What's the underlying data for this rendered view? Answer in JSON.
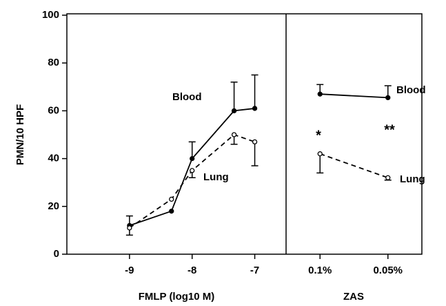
{
  "chart_data": [
    {
      "type": "line",
      "xlabel": "FMLP (log10 M)",
      "ylabel": "PMN/10 HPF",
      "x": [
        -9,
        -8.33,
        -8,
        -7.33,
        -7
      ],
      "xlim": [
        -10,
        -6.5
      ],
      "xticks": [
        -9,
        -8,
        -7
      ],
      "ylim": [
        0,
        100
      ],
      "yticks": [
        0,
        20,
        40,
        60,
        80,
        100
      ],
      "series": [
        {
          "name": "Blood",
          "color": "#000000",
          "dashed": false,
          "marker": "filled",
          "error_direction": "up",
          "values": [
            12,
            18,
            40,
            60,
            61
          ],
          "errors": [
            4,
            null,
            7,
            12,
            14
          ]
        },
        {
          "name": "Lung",
          "color": "#000000",
          "dashed": true,
          "marker": "open",
          "error_direction": "down",
          "values": [
            11,
            23,
            35,
            50,
            47
          ],
          "errors": [
            3,
            null,
            3,
            4,
            10
          ]
        }
      ]
    },
    {
      "type": "line",
      "xlabel": "ZAS",
      "categories": [
        "0.1%",
        "0.05%"
      ],
      "ylim": [
        0,
        100
      ],
      "annotations": [
        "*",
        "**"
      ],
      "series": [
        {
          "name": "Blood",
          "color": "#000000",
          "dashed": false,
          "marker": "filled",
          "error_direction": "up",
          "values": [
            67,
            65.5
          ],
          "errors": [
            4,
            5
          ]
        },
        {
          "name": "Lung",
          "color": "#000000",
          "dashed": true,
          "marker": "open",
          "error_direction": "down",
          "values": [
            42,
            32
          ],
          "errors": [
            8,
            1
          ]
        }
      ]
    }
  ]
}
